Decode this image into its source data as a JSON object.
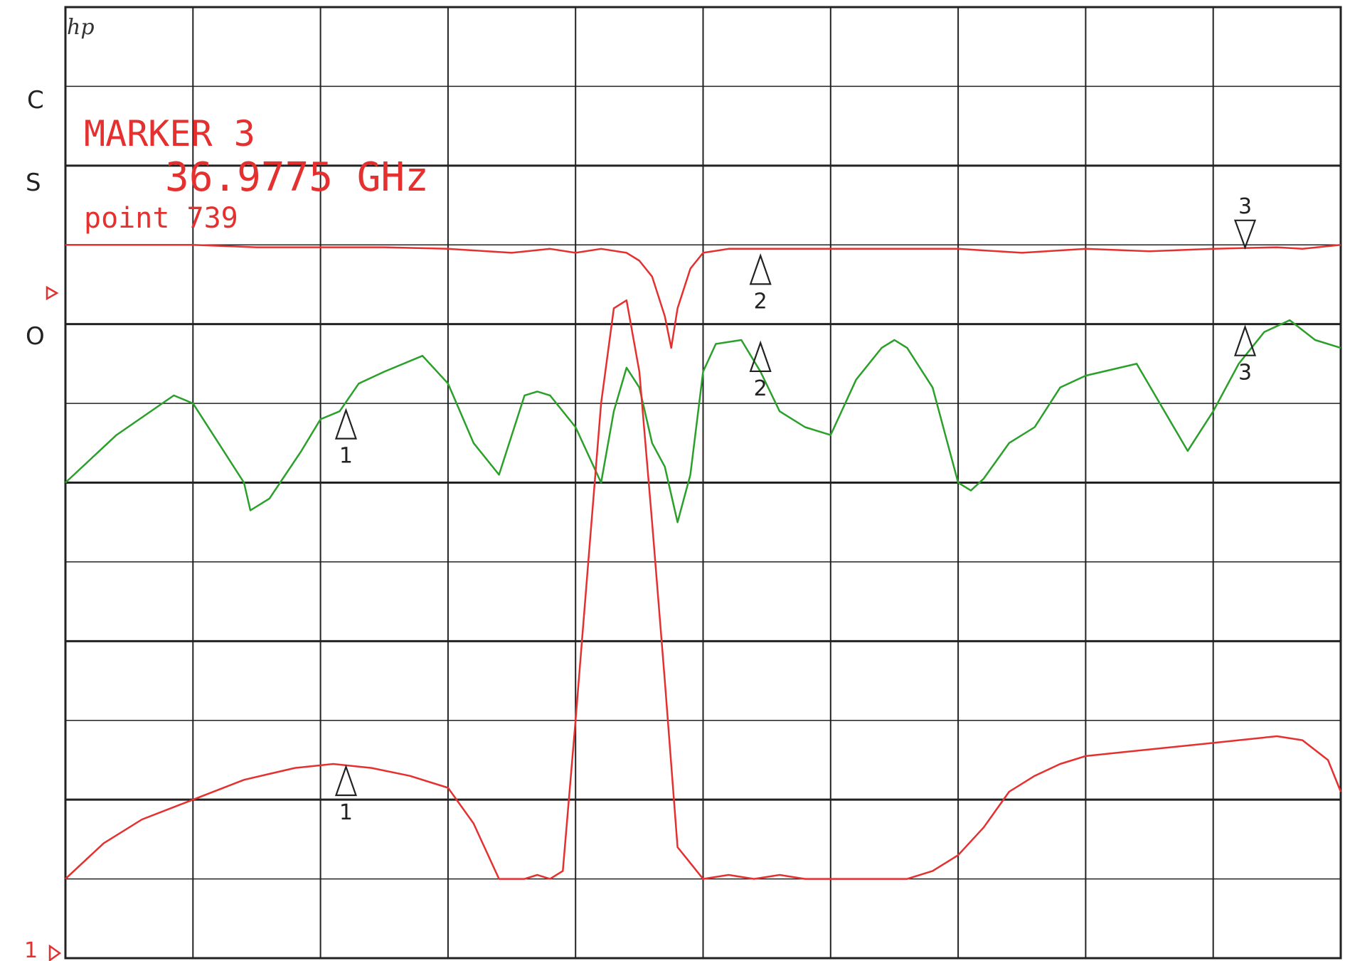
{
  "chart_data": {
    "type": "line",
    "title": "",
    "xlabel": "",
    "ylabel": "",
    "grid": true,
    "grid_divisions": {
      "x": 10,
      "y": 8
    },
    "x_range": [
      0,
      1
    ],
    "side_labels": [
      "C",
      "S",
      "O"
    ],
    "logo": "hp",
    "annotation": {
      "marker_label": "MARKER 3",
      "frequency": "36.9775 GHz",
      "point_label": "point 739"
    },
    "reference_marker": "1",
    "colors": {
      "trace_red": "#e53030",
      "trace_green": "#2aa02a",
      "grid": "#222222",
      "markers": "#222222"
    },
    "series": [
      {
        "color": "#e53030",
        "x": [
          0,
          0.05,
          0.1,
          0.15,
          0.2,
          0.25,
          0.3,
          0.35,
          0.38,
          0.4,
          0.42,
          0.44,
          0.45,
          0.46,
          0.47,
          0.475,
          0.48,
          0.49,
          0.5,
          0.52,
          0.55,
          0.6,
          0.65,
          0.7,
          0.75,
          0.8,
          0.85,
          0.9,
          0.95,
          0.97,
          1.0
        ],
        "values": [
          0,
          0,
          0,
          -0.03,
          -0.03,
          -0.03,
          -0.05,
          -0.1,
          -0.05,
          -0.1,
          -0.05,
          -0.1,
          -0.2,
          -0.4,
          -0.9,
          -1.3,
          -0.8,
          -0.3,
          -0.1,
          -0.05,
          -0.05,
          -0.05,
          -0.05,
          -0.05,
          -0.1,
          -0.05,
          -0.08,
          -0.05,
          -0.03,
          -0.05,
          0
        ]
      },
      {
        "color": "#2aa02a",
        "x": [
          0,
          0.04,
          0.085,
          0.1,
          0.12,
          0.14,
          0.145,
          0.16,
          0.185,
          0.2,
          0.215,
          0.23,
          0.25,
          0.28,
          0.3,
          0.32,
          0.34,
          0.36,
          0.37,
          0.38,
          0.4,
          0.42,
          0.43,
          0.44,
          0.45,
          0.46,
          0.47,
          0.48,
          0.49,
          0.5,
          0.51,
          0.53,
          0.545,
          0.56,
          0.58,
          0.6,
          0.62,
          0.64,
          0.65,
          0.66,
          0.68,
          0.7,
          0.71,
          0.72,
          0.74,
          0.76,
          0.78,
          0.8,
          0.84,
          0.88,
          0.9,
          0.92,
          0.94,
          0.96,
          0.98,
          1.0
        ],
        "values": [
          -3,
          -2.4,
          -1.9,
          -2,
          -2.5,
          -3,
          -3.35,
          -3.2,
          -2.6,
          -2.2,
          -2.1,
          -1.75,
          -1.6,
          -1.4,
          -1.75,
          -2.5,
          -2.9,
          -1.9,
          -1.85,
          -1.9,
          -2.3,
          -3,
          -2.1,
          -1.55,
          -1.8,
          -2.5,
          -2.8,
          -3.5,
          -2.9,
          -1.6,
          -1.25,
          -1.2,
          -1.6,
          -2.1,
          -2.3,
          -2.4,
          -1.7,
          -1.3,
          -1.2,
          -1.3,
          -1.8,
          -3.0,
          -3.1,
          -2.95,
          -2.5,
          -2.3,
          -1.8,
          -1.65,
          -1.5,
          -2.6,
          -2.1,
          -1.5,
          -1.1,
          -0.95,
          -1.2,
          -1.3
        ]
      },
      {
        "color": "#e53030",
        "x": [
          0,
          0.03,
          0.06,
          0.1,
          0.14,
          0.18,
          0.21,
          0.24,
          0.27,
          0.3,
          0.32,
          0.34,
          0.36,
          0.37,
          0.38,
          0.39,
          0.4,
          0.41,
          0.42,
          0.43,
          0.44,
          0.45,
          0.46,
          0.47,
          0.48,
          0.49,
          0.5,
          0.52,
          0.54,
          0.56,
          0.58,
          0.6,
          0.63,
          0.66,
          0.68,
          0.7,
          0.72,
          0.74,
          0.76,
          0.78,
          0.8,
          0.83,
          0.86,
          0.89,
          0.92,
          0.95,
          0.97,
          0.99,
          1.0
        ],
        "values": [
          -8,
          -7.55,
          -7.25,
          -7.0,
          -6.75,
          -6.6,
          -6.55,
          -6.6,
          -6.7,
          -6.85,
          -7.3,
          -8,
          -8,
          -7.95,
          -8,
          -7.9,
          -6.0,
          -4.0,
          -2.0,
          -0.8,
          -0.7,
          -1.6,
          -3.5,
          -5.5,
          -7.6,
          -7.8,
          -8,
          -7.95,
          -8,
          -7.95,
          -8,
          -8,
          -8,
          -8,
          -7.9,
          -7.7,
          -7.35,
          -6.9,
          -6.7,
          -6.55,
          -6.45,
          -6.4,
          -6.35,
          -6.3,
          -6.25,
          -6.2,
          -6.25,
          -6.5,
          -6.9
        ]
      }
    ],
    "markers": [
      {
        "number": "1",
        "x": 0.22,
        "y": -2.05,
        "color": "#222222"
      },
      {
        "number": "1",
        "x": 0.22,
        "y": -6.55,
        "color": "#222222"
      },
      {
        "number": "2",
        "x": 0.545,
        "y": -0.1,
        "color": "#222222"
      },
      {
        "number": "2",
        "x": 0.545,
        "y": -1.2,
        "color": "#222222"
      },
      {
        "number": "3",
        "x": 0.925,
        "y": -1.0,
        "color": "#222222"
      },
      {
        "number": "3",
        "x": 0.925,
        "y": -0.05,
        "color": "#222222",
        "direction": "down"
      }
    ]
  }
}
